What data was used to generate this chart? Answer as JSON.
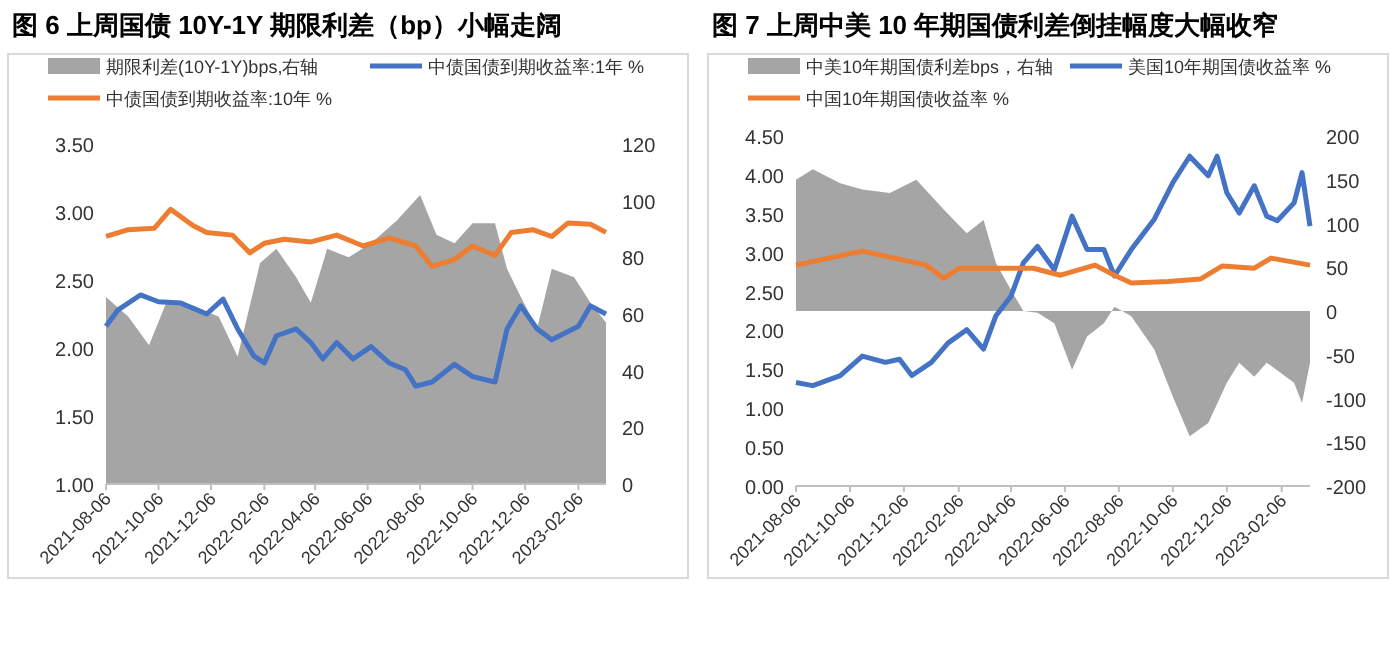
{
  "chart_data": [
    {
      "type": "line",
      "title": "图 6  上周国债 10Y-1Y 期限利差（bp）小幅走阔",
      "legend": "top",
      "xlim": [
        "2021-08-06",
        "2023-03-10"
      ],
      "xticks": [
        "2021-08-06",
        "2021-10-06",
        "2021-12-06",
        "2022-02-06",
        "2022-04-06",
        "2022-06-06",
        "2022-08-06",
        "2022-10-06",
        "2022-12-06",
        "2023-02-06"
      ],
      "ylim": [
        1,
        3.5
      ],
      "yticks": [
        {
          "value": 1,
          "label": "1.00"
        },
        {
          "value": 1.5,
          "label": "1.50"
        },
        {
          "value": 2,
          "label": "2.00"
        },
        {
          "value": 2.5,
          "label": "2.50"
        },
        {
          "value": 3,
          "label": "3.00"
        },
        {
          "value": 3.5,
          "label": "3.50"
        }
      ],
      "y2lim": [
        0,
        120
      ],
      "y2ticks": [
        0,
        20,
        40,
        60,
        80,
        100,
        120
      ],
      "series": [
        {
          "name": "期限利差(10Y-1Y)bps,右轴",
          "type": "area",
          "axis": "y2",
          "color": "#a5a5a5",
          "x": [
            "2021-08-06",
            "2021-09-01",
            "2021-09-25",
            "2021-10-15",
            "2021-11-15",
            "2021-12-15",
            "2022-01-06",
            "2022-02-01",
            "2022-02-20",
            "2022-03-15",
            "2022-04-01",
            "2022-04-20",
            "2022-05-15",
            "2022-06-10",
            "2022-07-10",
            "2022-08-06",
            "2022-08-25",
            "2022-09-15",
            "2022-10-06",
            "2022-11-01",
            "2022-11-15",
            "2022-12-01",
            "2022-12-20",
            "2023-01-06",
            "2023-02-01",
            "2023-02-20",
            "2023-03-10"
          ],
          "values": [
            66,
            59,
            49,
            64,
            63,
            59,
            45,
            78,
            83,
            73,
            64,
            83,
            80,
            85,
            93,
            102,
            88,
            85,
            92,
            92,
            76,
            66,
            55,
            76,
            73,
            64,
            57
          ]
        },
        {
          "name": "中债国债到期收益率:1年 %",
          "color": "#4472c4",
          "x": [
            "2021-08-06",
            "2021-08-20",
            "2021-09-15",
            "2021-10-06",
            "2021-11-01",
            "2021-12-01",
            "2021-12-20",
            "2022-01-06",
            "2022-01-25",
            "2022-02-06",
            "2022-02-20",
            "2022-03-15",
            "2022-04-01",
            "2022-04-15",
            "2022-05-01",
            "2022-05-20",
            "2022-06-10",
            "2022-07-01",
            "2022-07-20",
            "2022-08-01",
            "2022-08-20",
            "2022-09-15",
            "2022-10-06",
            "2022-11-01",
            "2022-11-15",
            "2022-12-01",
            "2022-12-20",
            "2023-01-06",
            "2023-02-06",
            "2023-02-20",
            "2023-03-10"
          ],
          "values": [
            2.16,
            2.28,
            2.39,
            2.34,
            2.33,
            2.25,
            2.36,
            2.14,
            1.94,
            1.89,
            2.09,
            2.14,
            2.04,
            1.92,
            2.04,
            1.92,
            2.01,
            1.89,
            1.84,
            1.72,
            1.75,
            1.88,
            1.79,
            1.75,
            2.14,
            2.31,
            2.14,
            2.06,
            2.16,
            2.31,
            2.25
          ]
        },
        {
          "name": "中债国债到期收益率:10年 %",
          "color": "#ed7d31",
          "x": [
            "2021-08-06",
            "2021-09-01",
            "2021-10-01",
            "2021-10-20",
            "2021-11-15",
            "2021-12-01",
            "2021-12-31",
            "2022-01-20",
            "2022-02-06",
            "2022-03-01",
            "2022-04-01",
            "2022-05-01",
            "2022-06-01",
            "2022-07-01",
            "2022-08-01",
            "2022-08-20",
            "2022-09-15",
            "2022-10-06",
            "2022-11-01",
            "2022-11-20",
            "2022-12-15",
            "2023-01-06",
            "2023-01-25",
            "2023-02-20",
            "2023-03-10"
          ],
          "values": [
            2.82,
            2.87,
            2.88,
            3.02,
            2.9,
            2.85,
            2.83,
            2.7,
            2.77,
            2.8,
            2.78,
            2.83,
            2.75,
            2.81,
            2.75,
            2.6,
            2.65,
            2.75,
            2.68,
            2.85,
            2.87,
            2.82,
            2.92,
            2.91,
            2.85
          ]
        }
      ]
    },
    {
      "type": "line",
      "title": "图 7  上周中美 10 年期国债利差倒挂幅度大幅收窄",
      "legend": "top",
      "xlim": [
        "2021-08-06",
        "2023-03-10"
      ],
      "xticks": [
        "2021-08-06",
        "2021-10-06",
        "2021-12-06",
        "2022-02-06",
        "2022-04-06",
        "2022-06-06",
        "2022-08-06",
        "2022-10-06",
        "2022-12-06",
        "2023-02-06"
      ],
      "ylim": [
        0,
        4.5
      ],
      "yticks": [
        {
          "value": 0,
          "label": "0.00"
        },
        {
          "value": 0.5,
          "label": "0.50"
        },
        {
          "value": 1,
          "label": "1.00"
        },
        {
          "value": 1.5,
          "label": "1.50"
        },
        {
          "value": 2,
          "label": "2.00"
        },
        {
          "value": 2.5,
          "label": "2.50"
        },
        {
          "value": 3,
          "label": "3.00"
        },
        {
          "value": 3.5,
          "label": "3.50"
        },
        {
          "value": 4,
          "label": "4.00"
        },
        {
          "value": 4.5,
          "label": "4.50"
        }
      ],
      "y2lim": [
        -200,
        200
      ],
      "y2ticks": [
        -200,
        -150,
        -100,
        -50,
        0,
        50,
        100,
        150,
        200
      ],
      "series": [
        {
          "name": "中美10年期国债利差bps，右轴",
          "type": "area",
          "axis": "y2",
          "color": "#a5a5a5",
          "x": [
            "2021-08-06",
            "2021-08-25",
            "2021-09-25",
            "2021-10-20",
            "2021-11-20",
            "2021-12-20",
            "2022-01-20",
            "2022-02-15",
            "2022-03-06",
            "2022-03-20",
            "2022-04-06",
            "2022-04-20",
            "2022-05-06",
            "2022-05-25",
            "2022-06-14",
            "2022-07-01",
            "2022-07-20",
            "2022-08-01",
            "2022-08-20",
            "2022-09-15",
            "2022-10-06",
            "2022-10-25",
            "2022-11-15",
            "2022-12-06",
            "2022-12-20",
            "2023-01-06",
            "2023-01-20",
            "2023-02-20",
            "2023-03-01",
            "2023-03-10"
          ],
          "values": [
            150,
            162,
            146,
            139,
            135,
            150,
            116,
            89,
            104,
            55,
            24,
            0,
            -2,
            -14,
            -67,
            -29,
            -14,
            5,
            -6,
            -44,
            -98,
            -143,
            -128,
            -82,
            -59,
            -75,
            -59,
            -82,
            -105,
            -59
          ]
        },
        {
          "name": "美国10年期国债收益率 %",
          "color": "#4472c4",
          "x": [
            "2021-08-06",
            "2021-08-25",
            "2021-09-25",
            "2021-10-20",
            "2021-11-15",
            "2021-12-01",
            "2021-12-15",
            "2022-01-06",
            "2022-01-25",
            "2022-02-15",
            "2022-03-06",
            "2022-03-20",
            "2022-04-06",
            "2022-04-20",
            "2022-05-06",
            "2022-05-25",
            "2022-06-14",
            "2022-07-01",
            "2022-07-20",
            "2022-08-01",
            "2022-08-20",
            "2022-09-15",
            "2022-10-06",
            "2022-10-25",
            "2022-11-15",
            "2022-11-25",
            "2022-12-06",
            "2022-12-20",
            "2023-01-06",
            "2023-01-20",
            "2023-02-01",
            "2023-02-20",
            "2023-03-01",
            "2023-03-10"
          ],
          "values": [
            1.33,
            1.29,
            1.42,
            1.67,
            1.59,
            1.63,
            1.42,
            1.59,
            1.84,
            2.01,
            1.76,
            2.19,
            2.44,
            2.87,
            3.08,
            2.78,
            3.47,
            3.04,
            3.04,
            2.7,
            3.04,
            3.43,
            3.9,
            4.24,
            3.99,
            4.24,
            3.77,
            3.51,
            3.86,
            3.47,
            3.41,
            3.64,
            4.03,
            3.34
          ]
        },
        {
          "name": "中国10年期国债收益率 %",
          "color": "#ed7d31",
          "x": [
            "2021-08-06",
            "2021-10-20",
            "2021-12-31",
            "2022-01-20",
            "2022-02-06",
            "2022-05-01",
            "2022-06-01",
            "2022-07-10",
            "2022-08-01",
            "2022-08-20",
            "2022-10-01",
            "2022-11-06",
            "2022-12-01",
            "2023-01-06",
            "2023-01-25",
            "2023-03-10"
          ],
          "values": [
            2.84,
            3.02,
            2.84,
            2.67,
            2.8,
            2.8,
            2.71,
            2.84,
            2.71,
            2.61,
            2.63,
            2.66,
            2.83,
            2.8,
            2.93,
            2.84
          ]
        }
      ]
    }
  ]
}
